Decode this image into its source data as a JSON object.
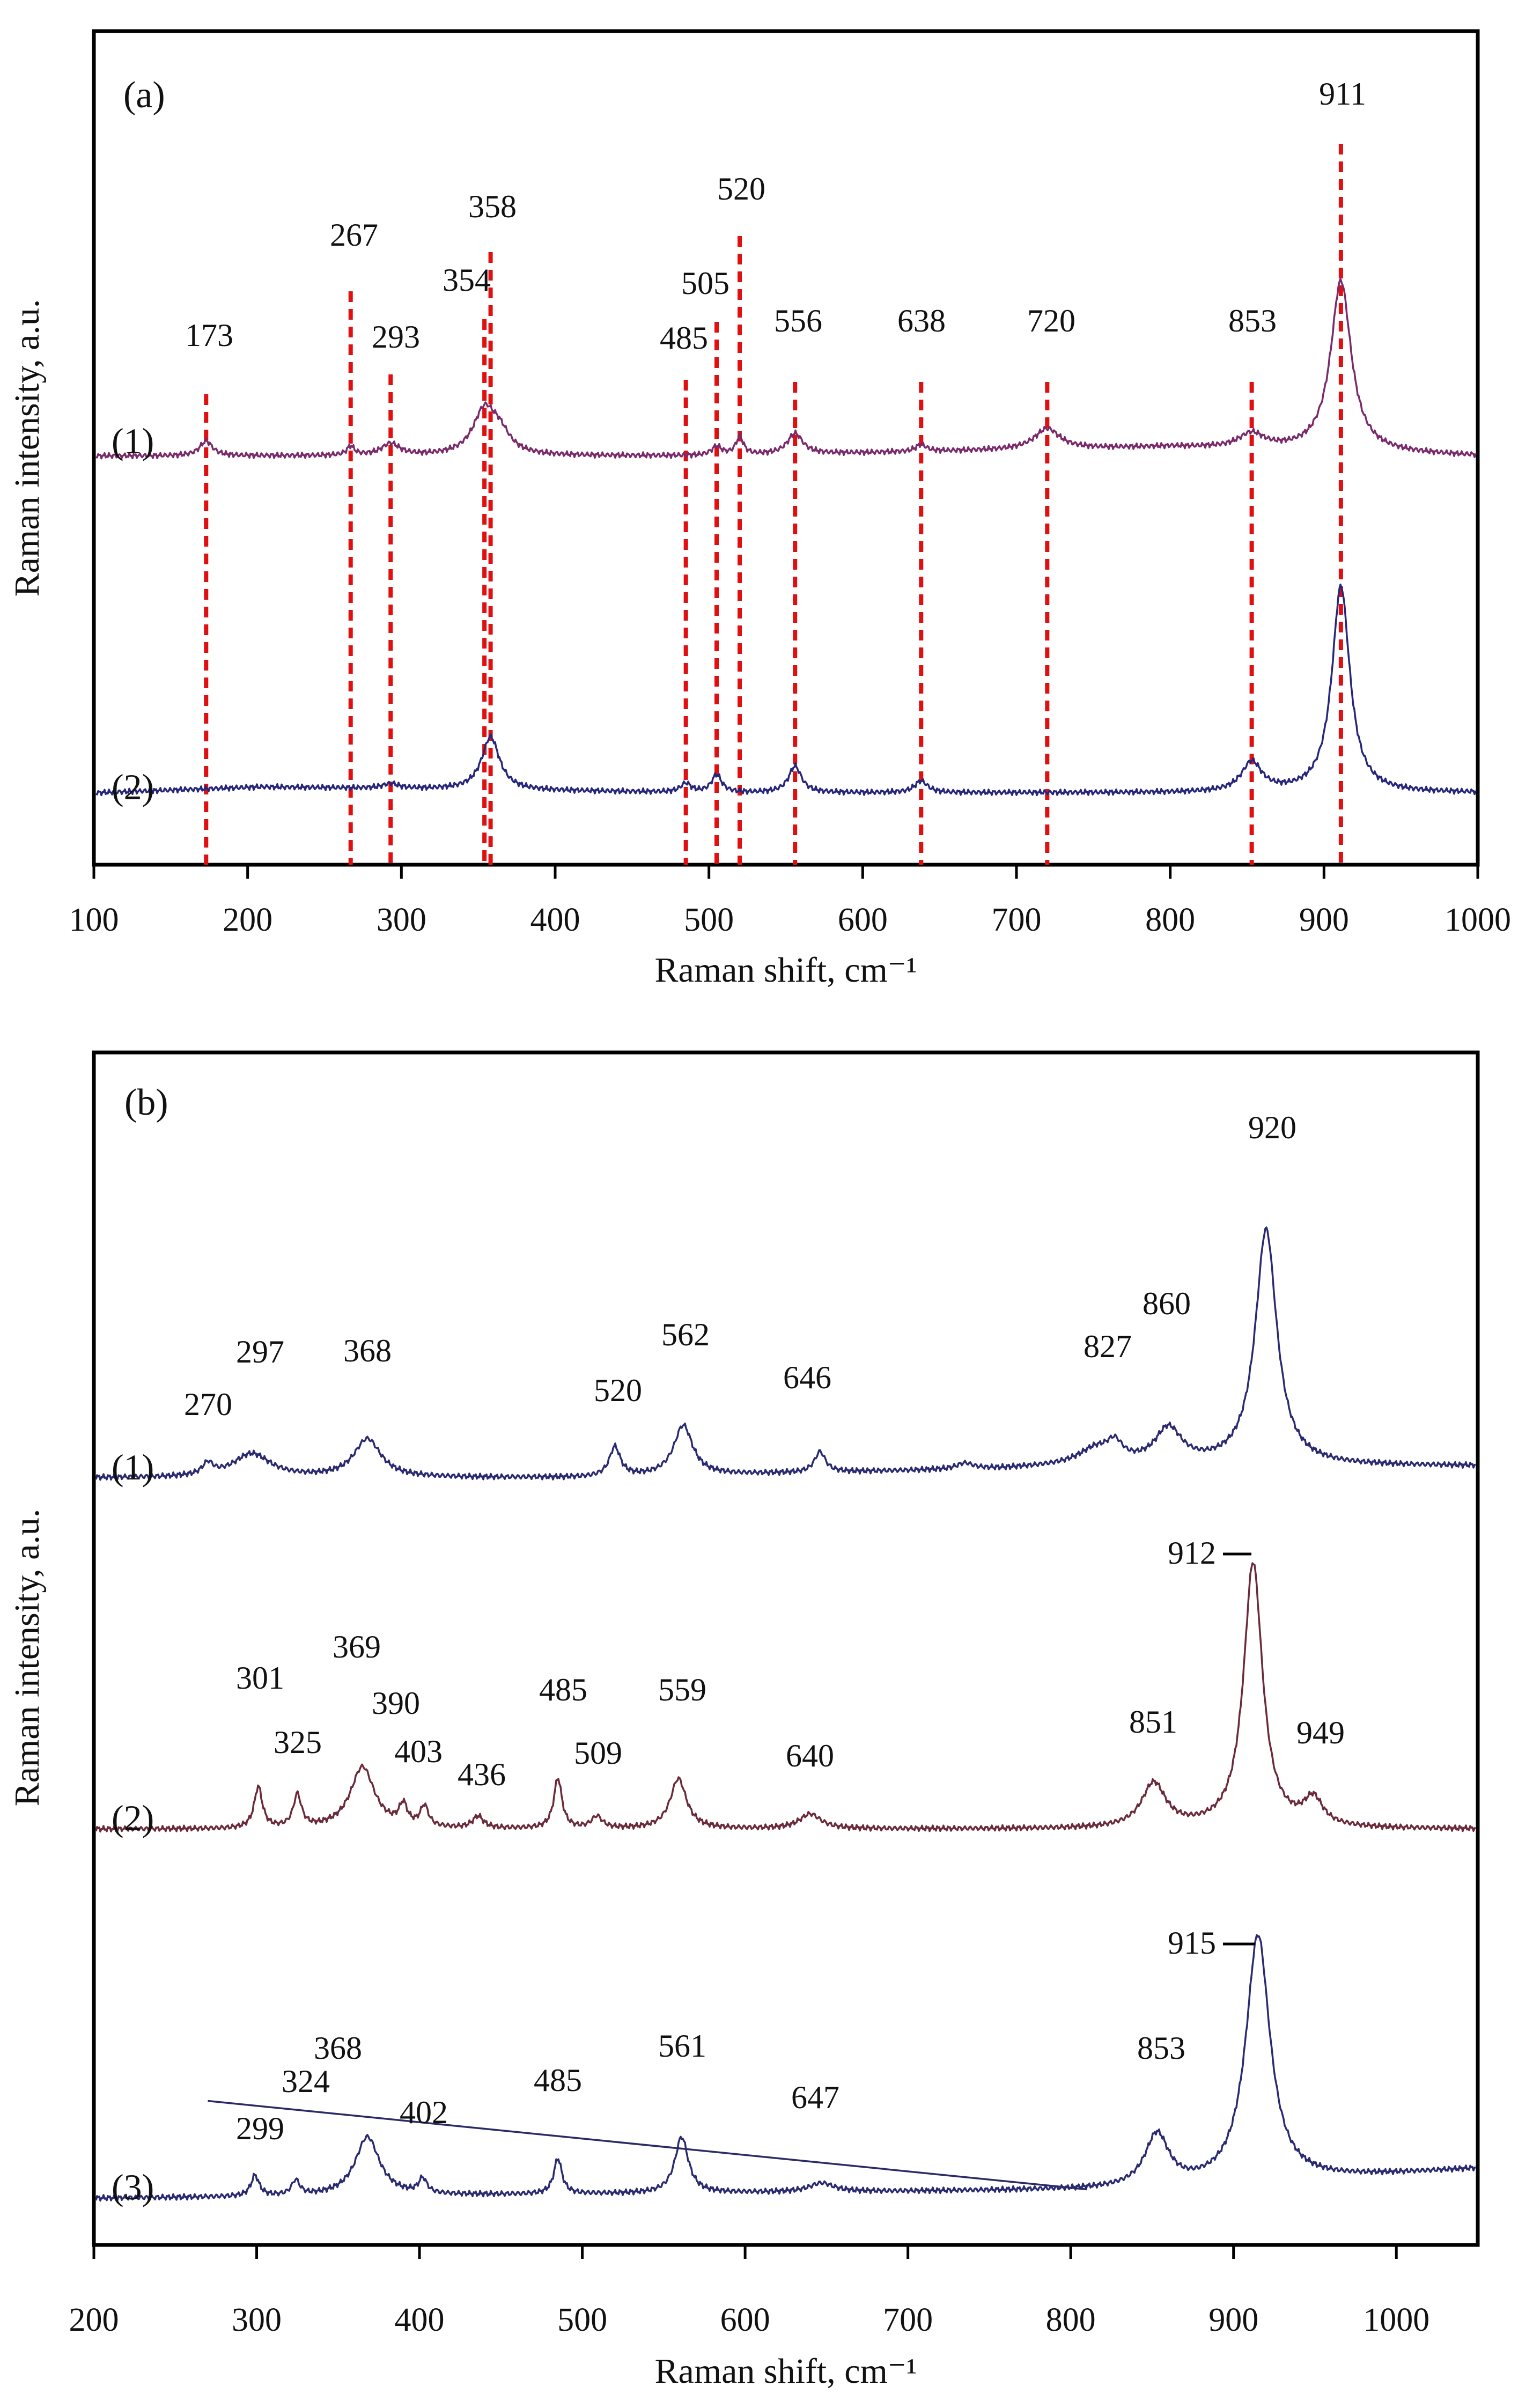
{
  "chart_data": [
    {
      "type": "line",
      "panel_label": "(a)",
      "xlabel": "Raman shift, cm⁻¹",
      "ylabel": "Raman intensity, a.u.",
      "xlim": [
        100,
        1000
      ],
      "xticks": [
        "100",
        "200",
        "300",
        "400",
        "500",
        "600",
        "700",
        "800",
        "900",
        "1000"
      ],
      "grid": false,
      "series": [
        {
          "name": "(1)",
          "color": "#7a2a6a",
          "offset": 5.0,
          "baseline": [
            [
              100,
              0.0
            ],
            [
              500,
              0.0
            ],
            [
              800,
              0.15
            ],
            [
              1000,
              0.0
            ]
          ],
          "peaks": [
            [
              173,
              0.25,
              5
            ],
            [
              267,
              0.15,
              3
            ],
            [
              293,
              0.2,
              7
            ],
            [
              354,
              0.75,
              9
            ],
            [
              364,
              0.3,
              8
            ],
            [
              505,
              0.15,
              4
            ],
            [
              520,
              0.3,
              3
            ],
            [
              556,
              0.35,
              6
            ],
            [
              638,
              0.12,
              4
            ],
            [
              720,
              0.35,
              10
            ],
            [
              853,
              0.25,
              10
            ],
            [
              911,
              2.9,
              8
            ]
          ]
        },
        {
          "name": "(2)",
          "color": "#26267a",
          "offset": 0.0,
          "baseline": [
            [
              100,
              0.0
            ],
            [
              210,
              0.1
            ],
            [
              500,
              0.0
            ],
            [
              840,
              0.0
            ],
            [
              1000,
              0.0
            ]
          ],
          "peaks": [
            [
              293,
              0.08,
              6
            ],
            [
              358,
              0.9,
              7
            ],
            [
              485,
              0.15,
              4
            ],
            [
              505,
              0.3,
              4
            ],
            [
              556,
              0.45,
              5
            ],
            [
              638,
              0.2,
              5
            ],
            [
              853,
              0.5,
              8
            ],
            [
              911,
              3.5,
              7
            ]
          ]
        }
      ],
      "reference_lines": [
        173,
        267,
        293,
        354,
        358,
        485,
        505,
        520,
        556,
        638,
        720,
        853,
        911
      ],
      "peak_labels": [
        {
          "text": "173",
          "x": 173
        },
        {
          "text": "267",
          "x": 267
        },
        {
          "text": "293",
          "x": 293
        },
        {
          "text": "354",
          "x": 354
        },
        {
          "text": "358",
          "x": 358
        },
        {
          "text": "485",
          "x": 485
        },
        {
          "text": "505",
          "x": 505
        },
        {
          "text": "520",
          "x": 520
        },
        {
          "text": "556",
          "x": 556
        },
        {
          "text": "638",
          "x": 638
        },
        {
          "text": "720",
          "x": 720
        },
        {
          "text": "853",
          "x": 853
        },
        {
          "text": "911",
          "x": 911
        }
      ]
    },
    {
      "type": "line",
      "panel_label": "(b)",
      "xlabel": "Raman shift, cm⁻¹",
      "ylabel": "Raman intensity, a.u.",
      "xlim": [
        200,
        1050
      ],
      "xticks": [
        "200",
        "300",
        "400",
        "500",
        "600",
        "700",
        "800",
        "900",
        "1000"
      ],
      "grid": false,
      "series": [
        {
          "name": "(1)",
          "color": "#2a2a70",
          "offset": 5.0,
          "baseline": [
            [
              200,
              0.0
            ],
            [
              500,
              0.0
            ],
            [
              760,
              0.15
            ],
            [
              800,
              0.2
            ],
            [
              1050,
              0.2
            ]
          ],
          "peaks": [
            [
              270,
              0.2,
              4
            ],
            [
              297,
              0.4,
              14
            ],
            [
              368,
              0.65,
              10
            ],
            [
              520,
              0.5,
              4
            ],
            [
              562,
              0.85,
              7
            ],
            [
              646,
              0.35,
              4
            ],
            [
              735,
              0.1,
              6
            ],
            [
              815,
              0.25,
              12
            ],
            [
              827,
              0.3,
              6
            ],
            [
              860,
              0.6,
              10
            ],
            [
              920,
              4.0,
              8
            ]
          ]
        },
        {
          "name": "(2)",
          "color": "#6a2a3a",
          "offset": 2.6,
          "baseline": [
            [
              200,
              0.0
            ],
            [
              1050,
              0.0
            ]
          ],
          "peaks": [
            [
              301,
              0.7,
              3
            ],
            [
              325,
              0.55,
              3
            ],
            [
              365,
              1.05,
              9
            ],
            [
              390,
              0.35,
              3
            ],
            [
              403,
              0.35,
              3
            ],
            [
              436,
              0.2,
              4
            ],
            [
              485,
              0.85,
              3
            ],
            [
              509,
              0.2,
              4
            ],
            [
              559,
              0.85,
              6
            ],
            [
              640,
              0.25,
              8
            ],
            [
              851,
              0.75,
              9
            ],
            [
              912,
              4.5,
              7
            ],
            [
              949,
              0.45,
              7
            ]
          ]
        },
        {
          "name": "(3)",
          "color": "#2a2a70",
          "offset": 0.0,
          "baseline": [
            [
              200,
              0.0
            ],
            [
              860,
              0.15
            ],
            [
              1050,
              0.5
            ]
          ],
          "peaks": [
            [
              299,
              0.35,
              3
            ],
            [
              324,
              0.25,
              3
            ],
            [
              368,
              1.0,
              9
            ],
            [
              402,
              0.25,
              3
            ],
            [
              485,
              0.6,
              3
            ],
            [
              561,
              0.95,
              5
            ],
            [
              647,
              0.15,
              9
            ],
            [
              853,
              0.9,
              9
            ],
            [
              915,
              4.2,
              9
            ]
          ]
        }
      ],
      "baseline_line": {
        "from": [
          270,
          1.65
        ],
        "to": [
          810,
          0.15
        ]
      },
      "peak_labels": [
        {
          "text": "270",
          "x": 270
        },
        {
          "text": "297",
          "x": 297
        },
        {
          "text": "368",
          "x": 368
        },
        {
          "text": "520",
          "x": 520
        },
        {
          "text": "562",
          "x": 562
        },
        {
          "text": "646",
          "x": 646
        },
        {
          "text": "827",
          "x": 827
        },
        {
          "text": "860",
          "x": 860
        },
        {
          "text": "920",
          "x": 920
        },
        {
          "text": "912",
          "x": 912
        },
        {
          "text": "301",
          "x": 301
        },
        {
          "text": "369",
          "x": 369
        },
        {
          "text": "325",
          "x": 325
        },
        {
          "text": "390",
          "x": 390
        },
        {
          "text": "403",
          "x": 403
        },
        {
          "text": "436",
          "x": 436
        },
        {
          "text": "485",
          "x": 485
        },
        {
          "text": "509",
          "x": 509
        },
        {
          "text": "559",
          "x": 559
        },
        {
          "text": "640",
          "x": 640
        },
        {
          "text": "851",
          "x": 851
        },
        {
          "text": "949",
          "x": 949
        },
        {
          "text": "915",
          "x": 915
        },
        {
          "text": "324",
          "x": 324
        },
        {
          "text": "368",
          "x": 368
        },
        {
          "text": "299",
          "x": 299
        },
        {
          "text": "402",
          "x": 402
        },
        {
          "text": "485",
          "x": 485
        },
        {
          "text": "561",
          "x": 561
        },
        {
          "text": "647",
          "x": 647
        },
        {
          "text": "853",
          "x": 853
        }
      ]
    }
  ]
}
